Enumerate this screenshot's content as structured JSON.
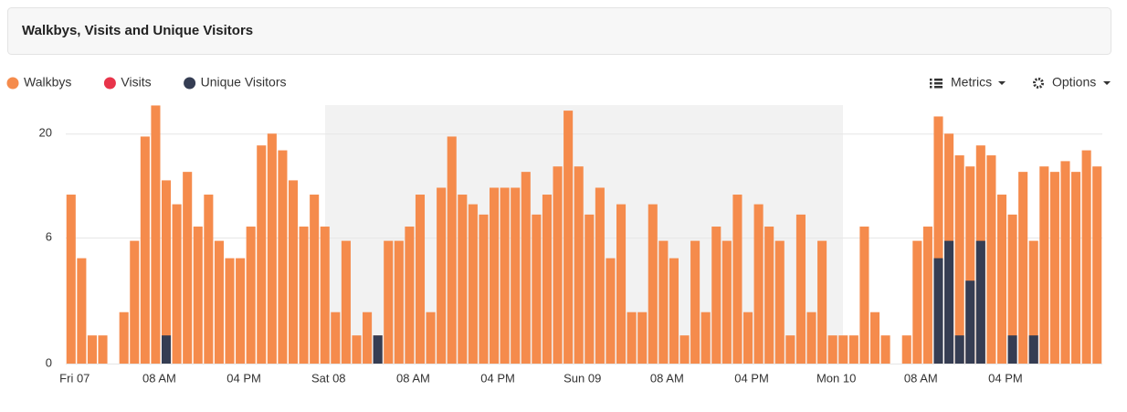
{
  "header": {
    "title": "Walkbys, Visits and Unique Visitors"
  },
  "toolbar": {
    "metrics": "Metrics",
    "options": "Options"
  },
  "chart_data": {
    "type": "bar",
    "y_scale": "sqrt",
    "overlap": true,
    "categories": [
      "Fri 07",
      null,
      null,
      null,
      null,
      null,
      null,
      null,
      "08 AM",
      null,
      null,
      null,
      null,
      null,
      null,
      null,
      "04 PM",
      null,
      null,
      null,
      null,
      null,
      null,
      null,
      "Sat 08",
      null,
      null,
      null,
      null,
      null,
      null,
      null,
      "08 AM",
      null,
      null,
      null,
      null,
      null,
      null,
      null,
      "04 PM",
      null,
      null,
      null,
      null,
      null,
      null,
      null,
      "Sun 09",
      null,
      null,
      null,
      null,
      null,
      null,
      null,
      "08 AM",
      null,
      null,
      null,
      null,
      null,
      null,
      null,
      "04 PM",
      null,
      null,
      null,
      null,
      null,
      null,
      null,
      "Mon 10",
      null,
      null,
      null,
      null,
      null,
      null,
      null,
      "08 AM",
      null,
      null,
      null,
      null,
      null,
      null,
      null,
      "04 PM",
      null,
      null,
      null,
      null,
      null,
      null,
      null,
      null,
      null
    ],
    "series": [
      {
        "name": "Walkbys",
        "color": "#f58b4c",
        "values": [
          10.8,
          4.2,
          0.3,
          0.3,
          0,
          1.0,
          5.7,
          19.5,
          25.2,
          12.7,
          9.6,
          13.9,
          7.1,
          10.8,
          5.7,
          4.2,
          4.2,
          7.1,
          18,
          20,
          17.2,
          12.7,
          7.1,
          10.8,
          7.1,
          1.0,
          5.7,
          0.3,
          1.0,
          0.3,
          5.7,
          5.7,
          7.1,
          10.8,
          1.0,
          11.7,
          19.5,
          10.8,
          9.6,
          8.4,
          11.7,
          11.7,
          11.7,
          13.9,
          8.4,
          10.8,
          14.7,
          24.2,
          14.7,
          8.4,
          11.7,
          4.2,
          9.6,
          1.0,
          1.0,
          9.6,
          5.7,
          4.2,
          0.3,
          5.7,
          1.0,
          7.1,
          5.7,
          10.8,
          1.0,
          9.6,
          7.1,
          5.7,
          0.3,
          8.4,
          1.0,
          5.7,
          0.3,
          0.3,
          0.3,
          7.1,
          1.0,
          0.3,
          0,
          0.3,
          5.7,
          7.1,
          23.1,
          20,
          16.4,
          14.7,
          18,
          16.4,
          10.8,
          8.4,
          13.9,
          5.7,
          14.7,
          13.9,
          15.5,
          13.9,
          17.2,
          14.7
        ]
      },
      {
        "name": "Visits",
        "color": "#e8344a",
        "values": [
          0,
          0,
          0,
          0,
          0,
          0,
          0,
          0,
          0,
          0,
          0,
          0,
          0,
          0,
          0,
          0,
          0,
          0,
          0,
          0,
          0,
          0,
          0,
          0,
          0,
          0,
          0,
          0,
          0,
          0,
          0,
          0,
          0,
          0,
          0,
          0,
          0,
          0,
          0,
          0,
          0,
          0,
          0,
          0,
          0,
          0,
          0,
          0,
          0,
          0,
          0,
          0,
          0,
          0,
          0,
          0,
          0,
          0,
          0,
          0,
          0,
          0,
          0,
          0,
          0,
          0,
          0,
          0,
          0,
          0,
          0,
          0,
          0,
          0,
          0,
          0,
          0,
          0,
          0,
          0,
          0,
          0,
          0,
          0,
          0,
          0,
          0,
          0,
          0,
          0,
          0,
          0,
          0,
          0,
          0,
          0,
          0,
          0
        ]
      },
      {
        "name": "Unique Visitors",
        "color": "#353d53",
        "values": [
          0,
          0,
          0,
          0,
          0,
          0,
          0,
          0,
          0,
          0.3,
          0,
          0,
          0,
          0,
          0,
          0,
          0,
          0,
          0,
          0,
          0,
          0,
          0,
          0,
          0,
          0,
          0,
          0,
          0,
          0.3,
          0,
          0,
          0,
          0,
          0,
          0,
          0,
          0,
          0,
          0,
          0,
          0,
          0,
          0,
          0,
          0,
          0,
          0,
          0,
          0,
          0,
          0,
          0,
          0,
          0,
          0,
          0,
          0,
          0,
          0,
          0,
          0,
          0,
          0,
          0,
          0,
          0,
          0,
          0,
          0,
          0,
          0,
          0,
          0,
          0,
          0,
          0,
          0,
          0,
          0,
          0,
          0,
          4.2,
          5.7,
          0.3,
          2.6,
          5.7,
          0,
          0,
          0.3,
          0,
          0.3,
          0,
          0,
          0,
          0,
          0,
          0
        ]
      }
    ],
    "ylim": [
      0,
      26
    ],
    "yticks": [
      0,
      6,
      20
    ],
    "grid": true
  }
}
